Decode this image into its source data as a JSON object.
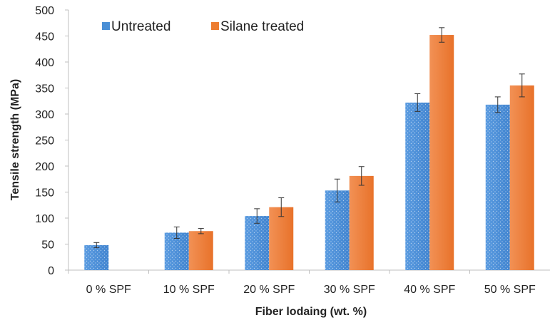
{
  "chart_data": {
    "type": "bar",
    "xlabel": "Fiber lodaing (wt. %)",
    "ylabel": "Tensile strength (MPa)",
    "ylim": [
      0,
      500
    ],
    "yticks": [
      0,
      50,
      100,
      150,
      200,
      250,
      300,
      350,
      400,
      450,
      500
    ],
    "categories": [
      "0 % SPF",
      "10 % SPF",
      "20 % SPF",
      "30 % SPF",
      "40 % SPF",
      "50 % SPF"
    ],
    "series": [
      {
        "name": "Untreated",
        "color": "#4a8fd6",
        "values": [
          48,
          72,
          104,
          153,
          322,
          318
        ],
        "errors": [
          5,
          11,
          14,
          22,
          17,
          15
        ]
      },
      {
        "name": "Silane treated",
        "color": "#ed7d31",
        "values": [
          null,
          75,
          121,
          181,
          452,
          355
        ],
        "errors": [
          null,
          5,
          18,
          18,
          14,
          22
        ]
      }
    ],
    "legend_position": "top-left",
    "grid": false,
    "error_bars": true
  }
}
